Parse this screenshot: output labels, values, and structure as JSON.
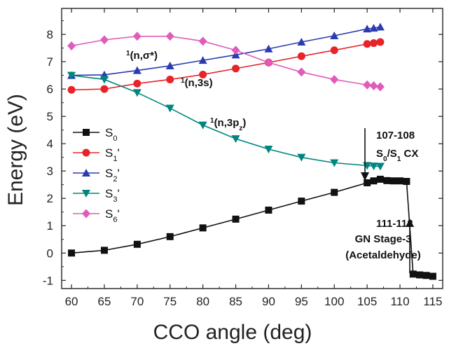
{
  "chart_data": {
    "type": "line",
    "xlabel": "CCO angle (deg)",
    "ylabel": "Energy (eV)",
    "xlim": [
      58.5,
      116.5
    ],
    "ylim": [
      -1.3,
      8.95
    ],
    "xticks": [
      60,
      65,
      70,
      75,
      80,
      85,
      90,
      95,
      100,
      105,
      110,
      115
    ],
    "yticks": [
      -1,
      0,
      1,
      2,
      3,
      4,
      5,
      6,
      7,
      8
    ],
    "legend_position": "center-left",
    "series": [
      {
        "key": "S0",
        "name": "S0",
        "marker": "square",
        "color": "#111111",
        "x": [
          60,
          65,
          70,
          75,
          80,
          85,
          90,
          95,
          100,
          105,
          106,
          107,
          108,
          109,
          110,
          111,
          112,
          113,
          114,
          115
        ],
        "y": [
          0.0,
          0.1,
          0.32,
          0.6,
          0.92,
          1.24,
          1.57,
          1.9,
          2.22,
          2.57,
          2.64,
          2.7,
          2.65,
          2.64,
          2.64,
          2.62,
          -0.77,
          -0.8,
          -0.82,
          -0.85
        ]
      },
      {
        "key": "S1",
        "name": "S1'",
        "marker": "circle",
        "color": "#e8242a",
        "x": [
          60,
          65,
          70,
          75,
          80,
          85,
          90,
          95,
          100,
          105,
          106,
          107
        ],
        "y": [
          5.97,
          6.0,
          6.2,
          6.35,
          6.53,
          6.75,
          6.97,
          7.2,
          7.42,
          7.65,
          7.68,
          7.72
        ]
      },
      {
        "key": "S2",
        "name": "S2'",
        "marker": "triangle-up",
        "color": "#2b3bb0",
        "x": [
          60,
          65,
          70,
          75,
          80,
          85,
          90,
          95,
          100,
          105,
          106,
          107
        ],
        "y": [
          6.5,
          6.52,
          6.68,
          6.85,
          7.05,
          7.25,
          7.47,
          7.72,
          7.95,
          8.2,
          8.23,
          8.27
        ]
      },
      {
        "key": "S3",
        "name": "S3'",
        "marker": "triangle-down",
        "color": "#00857f",
        "x": [
          60,
          65,
          70,
          75,
          80,
          85,
          90,
          95,
          100,
          105,
          106,
          107
        ],
        "y": [
          6.5,
          6.35,
          5.87,
          5.3,
          4.68,
          4.18,
          3.8,
          3.5,
          3.3,
          3.2,
          3.18,
          3.17
        ]
      },
      {
        "key": "S6",
        "name": "S6'",
        "marker": "diamond",
        "color": "#e05cba",
        "x": [
          60,
          65,
          70,
          75,
          80,
          85,
          90,
          95,
          100,
          105,
          106,
          107
        ],
        "y": [
          7.58,
          7.8,
          7.93,
          7.93,
          7.75,
          7.42,
          6.97,
          6.62,
          6.35,
          6.15,
          6.12,
          6.08
        ]
      }
    ],
    "legend": [
      {
        "base": "S",
        "sub": "0",
        "suffix": ""
      },
      {
        "base": "S",
        "sub": "1",
        "suffix": "'"
      },
      {
        "base": "S",
        "sub": "2",
        "suffix": "'"
      },
      {
        "base": "S",
        "sub": "3",
        "suffix": "'"
      },
      {
        "base": "S",
        "sub": "6",
        "suffix": "'"
      }
    ],
    "annotations": {
      "n_sigma": {
        "sup": "1",
        "text": "(n,σ*)"
      },
      "n_3s": {
        "sup": "1",
        "text": "(n,3s)"
      },
      "n_3pz": {
        "sup": "1",
        "text": "(n,3p",
        "sub": "z",
        "close": ")"
      },
      "cx_range": "107-108",
      "cx_label": {
        "a": "S",
        "a_sub": "0",
        "slash": "/S",
        "b_sub": "1",
        "rest": " CX"
      },
      "stage_range": "111-112",
      "stage_line1": "GN Stage-3",
      "stage_line2": "(Acetaldehyde)"
    }
  }
}
